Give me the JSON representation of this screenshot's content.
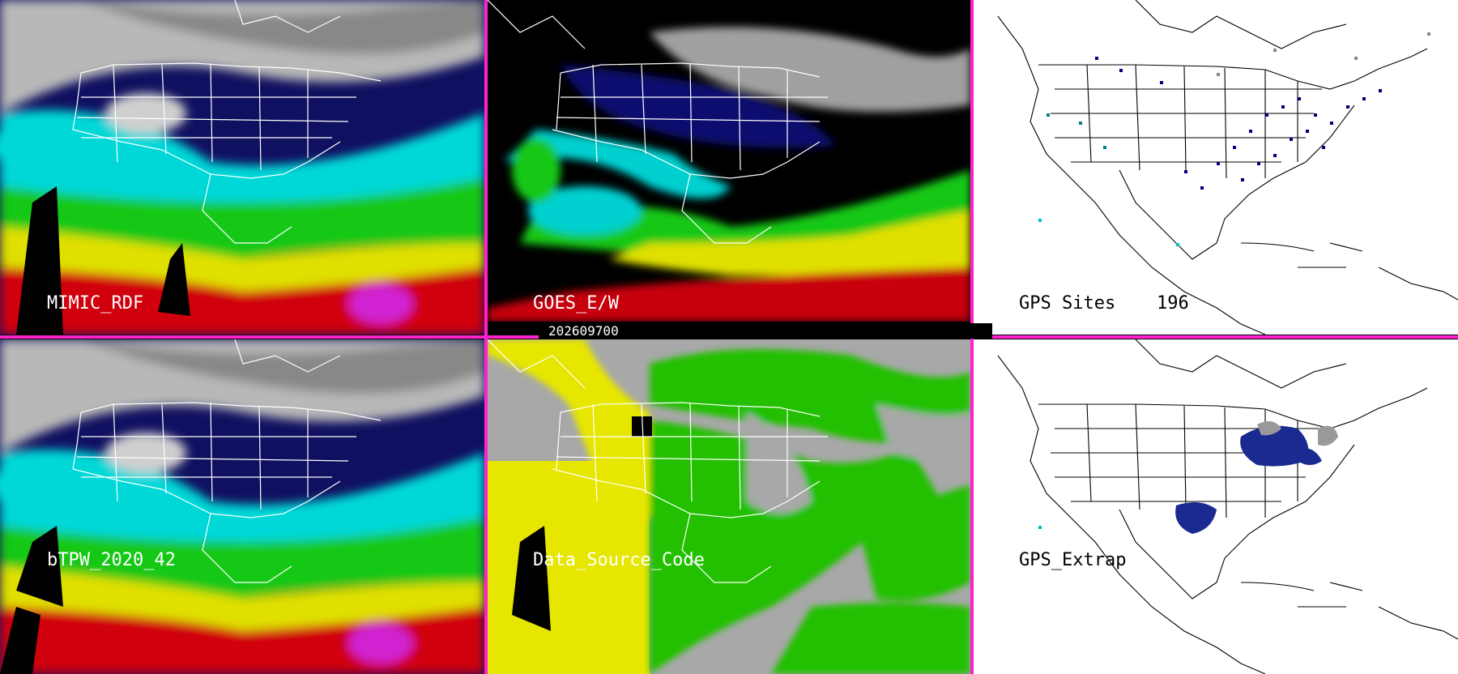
{
  "panels": {
    "mimic": {
      "label": "MIMIC_RDF"
    },
    "goes": {
      "label": "GOES_E/W"
    },
    "gps_sites": {
      "label": "GPS Sites",
      "count": "196"
    },
    "btpw": {
      "label": "bTPW_2020_42"
    },
    "source": {
      "label": "Data_Source_Code"
    },
    "gps_extrap": {
      "label": "GPS_Extrap"
    }
  },
  "timestamp": "202609700",
  "colors": {
    "divider": "#ff22cc",
    "tpw_dry": "#1a1a8c",
    "tpw_low": "#00e0e0",
    "tpw_mid": "#20d020",
    "tpw_high": "#e0e000",
    "tpw_max": "#d00010",
    "source_gps": "#20c000",
    "source_sat": "#e6e600",
    "source_other": "#a8a8a8"
  }
}
